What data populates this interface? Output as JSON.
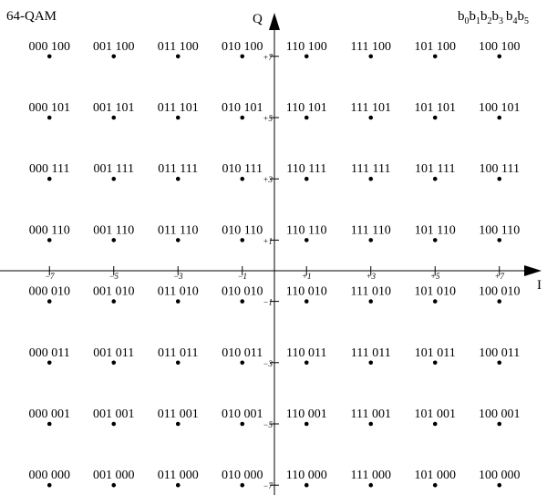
{
  "title": "64-QAM",
  "bit_order": {
    "b0": "b",
    "s0": "0",
    "b1": "b",
    "s1": "1",
    "b2": "b",
    "s2": "2",
    "b3": "b",
    "s3": "3",
    "b4": "b",
    "s4": "4",
    "b5": "b",
    "s5": "5"
  },
  "axes": {
    "i_label": "I",
    "q_label": "Q"
  },
  "chart_data": {
    "type": "scatter",
    "title": "64-QAM",
    "xlabel": "I",
    "ylabel": "Q",
    "xlim": [
      -8,
      8
    ],
    "ylim": [
      -8,
      8
    ],
    "grid": false,
    "x_ticks": [
      -7,
      -5,
      -3,
      -1,
      1,
      3,
      5,
      7
    ],
    "y_ticks": [
      7,
      5,
      3,
      1,
      -1,
      -3,
      -5,
      -7
    ],
    "x_tick_labels": [
      "−7",
      "−5",
      "−3",
      "−1",
      "+1",
      "+3",
      "+5",
      "+7"
    ],
    "y_tick_labels": [
      "+7",
      "+5",
      "+3",
      "+1",
      "−1",
      "−3",
      "−5",
      "−7"
    ],
    "points": [
      {
        "x": -7,
        "y": 7,
        "label": "000 100"
      },
      {
        "x": -5,
        "y": 7,
        "label": "001 100"
      },
      {
        "x": -3,
        "y": 7,
        "label": "011 100"
      },
      {
        "x": -1,
        "y": 7,
        "label": "010 100"
      },
      {
        "x": 1,
        "y": 7,
        "label": "110 100"
      },
      {
        "x": 3,
        "y": 7,
        "label": "111 100"
      },
      {
        "x": 5,
        "y": 7,
        "label": "101 100"
      },
      {
        "x": 7,
        "y": 7,
        "label": "100 100"
      },
      {
        "x": -7,
        "y": 5,
        "label": "000 101"
      },
      {
        "x": -5,
        "y": 5,
        "label": "001 101"
      },
      {
        "x": -3,
        "y": 5,
        "label": "011 101"
      },
      {
        "x": -1,
        "y": 5,
        "label": "010 101"
      },
      {
        "x": 1,
        "y": 5,
        "label": "110 101"
      },
      {
        "x": 3,
        "y": 5,
        "label": "111 101"
      },
      {
        "x": 5,
        "y": 5,
        "label": "101 101"
      },
      {
        "x": 7,
        "y": 5,
        "label": "100 101"
      },
      {
        "x": -7,
        "y": 3,
        "label": "000 111"
      },
      {
        "x": -5,
        "y": 3,
        "label": "001 111"
      },
      {
        "x": -3,
        "y": 3,
        "label": "011 111"
      },
      {
        "x": -1,
        "y": 3,
        "label": "010 111"
      },
      {
        "x": 1,
        "y": 3,
        "label": "110 111"
      },
      {
        "x": 3,
        "y": 3,
        "label": "111 111"
      },
      {
        "x": 5,
        "y": 3,
        "label": "101 111"
      },
      {
        "x": 7,
        "y": 3,
        "label": "100 111"
      },
      {
        "x": -7,
        "y": 1,
        "label": "000 110"
      },
      {
        "x": -5,
        "y": 1,
        "label": "001 110"
      },
      {
        "x": -3,
        "y": 1,
        "label": "011 110"
      },
      {
        "x": -1,
        "y": 1,
        "label": "010 110"
      },
      {
        "x": 1,
        "y": 1,
        "label": "110 110"
      },
      {
        "x": 3,
        "y": 1,
        "label": "111 110"
      },
      {
        "x": 5,
        "y": 1,
        "label": "101 110"
      },
      {
        "x": 7,
        "y": 1,
        "label": "100 110"
      },
      {
        "x": -7,
        "y": -1,
        "label": "000 010"
      },
      {
        "x": -5,
        "y": -1,
        "label": "001 010"
      },
      {
        "x": -3,
        "y": -1,
        "label": "011 010"
      },
      {
        "x": -1,
        "y": -1,
        "label": "010 010"
      },
      {
        "x": 1,
        "y": -1,
        "label": "110 010"
      },
      {
        "x": 3,
        "y": -1,
        "label": "111 010"
      },
      {
        "x": 5,
        "y": -1,
        "label": "101 010"
      },
      {
        "x": 7,
        "y": -1,
        "label": "100 010"
      },
      {
        "x": -7,
        "y": -3,
        "label": "000 011"
      },
      {
        "x": -5,
        "y": -3,
        "label": "001 011"
      },
      {
        "x": -3,
        "y": -3,
        "label": "011 011"
      },
      {
        "x": -1,
        "y": -3,
        "label": "010 011"
      },
      {
        "x": 1,
        "y": -3,
        "label": "110 011"
      },
      {
        "x": 3,
        "y": -3,
        "label": "111 011"
      },
      {
        "x": 5,
        "y": -3,
        "label": "101 011"
      },
      {
        "x": 7,
        "y": -3,
        "label": "100 011"
      },
      {
        "x": -7,
        "y": -5,
        "label": "000 001"
      },
      {
        "x": -5,
        "y": -5,
        "label": "001 001"
      },
      {
        "x": -3,
        "y": -5,
        "label": "011 001"
      },
      {
        "x": -1,
        "y": -5,
        "label": "010 001"
      },
      {
        "x": 1,
        "y": -5,
        "label": "110 001"
      },
      {
        "x": 3,
        "y": -5,
        "label": "111 001"
      },
      {
        "x": 5,
        "y": -5,
        "label": "101 001"
      },
      {
        "x": 7,
        "y": -5,
        "label": "100 001"
      },
      {
        "x": -7,
        "y": -7,
        "label": "000 000"
      },
      {
        "x": -5,
        "y": -7,
        "label": "001 000"
      },
      {
        "x": -3,
        "y": -7,
        "label": "011 000"
      },
      {
        "x": -1,
        "y": -7,
        "label": "010 000"
      },
      {
        "x": 1,
        "y": -7,
        "label": "110 000"
      },
      {
        "x": 3,
        "y": -7,
        "label": "111 000"
      },
      {
        "x": 5,
        "y": -7,
        "label": "101 000"
      },
      {
        "x": 7,
        "y": -7,
        "label": "100 000"
      }
    ]
  }
}
